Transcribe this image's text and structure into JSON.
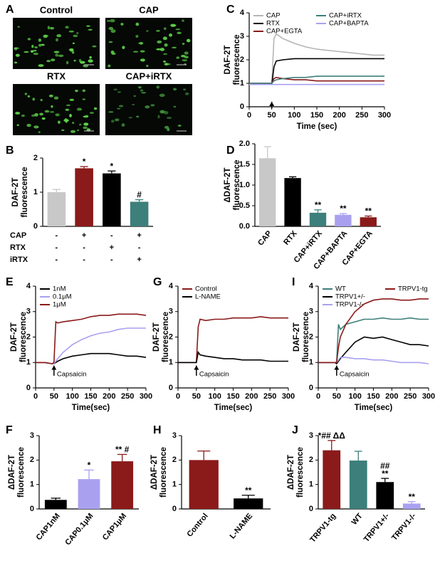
{
  "panel_a": {
    "panel": "A",
    "images": [
      {
        "title": "Control"
      },
      {
        "title": "CAP"
      },
      {
        "title": "RTX"
      },
      {
        "title": "CAP+iRTX"
      }
    ]
  },
  "chart_data": [
    {
      "type": "line",
      "panel": "C",
      "y_label": [
        "DAF-2T",
        "fluorescence"
      ],
      "x_label": "Time (sec)",
      "x": [
        0,
        25,
        45,
        50,
        55,
        60,
        75,
        100,
        125,
        150,
        175,
        200,
        225,
        250,
        275,
        300
      ],
      "series": [
        {
          "name": "CAP",
          "color": "#b5b5b5",
          "values": [
            1,
            1,
            1,
            1,
            2.9,
            3.1,
            2.9,
            2.7,
            2.55,
            2.45,
            2.4,
            2.35,
            2.3,
            2.25,
            2.2,
            2.2
          ]
        },
        {
          "name": "RTX",
          "color": "#000000",
          "values": [
            0.95,
            0.95,
            0.95,
            0.95,
            1.7,
            1.95,
            2.0,
            2.05,
            2.05,
            2.05,
            2.05,
            2.05,
            2.05,
            2.05,
            2.05,
            2.05
          ]
        },
        {
          "name": "CAP+EGTA",
          "color": "#8b1a1a",
          "values": [
            1,
            1,
            1,
            1,
            1.2,
            1.25,
            1.2,
            1.15,
            1.15,
            1.1,
            1.1,
            1.1,
            1.1,
            1.1,
            1.1,
            1.1
          ]
        },
        {
          "name": "CAP+iRTX",
          "color": "#3d7f7a",
          "values": [
            1,
            1,
            1,
            1,
            1.1,
            1.15,
            1.2,
            1.25,
            1.25,
            1.3,
            1.3,
            1.3,
            1.3,
            1.3,
            1.3,
            1.3
          ]
        },
        {
          "name": "CAP+BAPTA",
          "color": "#a9a1f0",
          "values": [
            0.95,
            0.95,
            0.95,
            0.95,
            0.95,
            0.95,
            0.95,
            0.95,
            0.95,
            0.95,
            0.95,
            0.95,
            0.95,
            0.95,
            0.95,
            0.95
          ]
        }
      ],
      "xlim": [
        0,
        300
      ],
      "xticks": [
        0,
        50,
        100,
        150,
        200,
        250,
        300
      ],
      "ylim": [
        0,
        4
      ],
      "yticks": [
        0,
        1,
        2,
        3,
        4
      ],
      "arrow_at": 50
    },
    {
      "type": "bar",
      "panel": "B",
      "y_label": [
        "DAF-2T",
        "fluorescence"
      ],
      "values": [
        1.0,
        1.7,
        1.55,
        0.72
      ],
      "errors": [
        0.08,
        0.05,
        0.07,
        0.06
      ],
      "colors": [
        "#c8c8c8",
        "#8b1a1a",
        "#000000",
        "#3d7f7a"
      ],
      "annotations": [
        null,
        "*",
        "*",
        "#"
      ],
      "ylim": [
        0,
        2
      ],
      "yticks": [
        0,
        1,
        2
      ],
      "table": {
        "rows": [
          {
            "label": "CAP",
            "cells": [
              "-",
              "+",
              "-",
              "+"
            ]
          },
          {
            "label": "RTX",
            "cells": [
              "-",
              "-",
              "+",
              "-"
            ]
          },
          {
            "label": "iRTX",
            "cells": [
              "-",
              "-",
              "-",
              "+"
            ]
          }
        ]
      }
    },
    {
      "type": "bar",
      "panel": "D",
      "y_label": [
        "ΔDAF-2T",
        "fluorescence"
      ],
      "categories": [
        "CAP",
        "RTX",
        "CAP+iRTX",
        "CAP+BAPTA",
        "CAP+EGTA"
      ],
      "values": [
        1.65,
        1.17,
        0.33,
        0.28,
        0.22
      ],
      "errors": [
        0.28,
        0.03,
        0.07,
        0.03,
        0.03
      ],
      "colors": [
        "#c8c8c8",
        "#000000",
        "#3d7f7a",
        "#a9a1f0",
        "#8b1a1a"
      ],
      "annotations": [
        null,
        null,
        "**",
        "**",
        "**"
      ],
      "ylim": [
        0,
        2
      ],
      "yticks": [
        {
          "value": 0,
          "label": "0.0"
        },
        {
          "value": 0.5,
          "label": "0.5"
        },
        {
          "value": 1,
          "label": "1.0"
        },
        {
          "value": 1.5,
          "label": "1.5"
        },
        {
          "value": 2,
          "label": "2.0"
        }
      ]
    },
    {
      "type": "line",
      "panel": "E",
      "y_label": [
        "DAF-2T",
        "fluorescence"
      ],
      "x_label": "Time(sec)",
      "x": [
        0,
        25,
        45,
        50,
        55,
        60,
        75,
        100,
        125,
        150,
        175,
        200,
        225,
        250,
        275,
        300
      ],
      "series": [
        {
          "name": "1nM",
          "color": "#000000",
          "values": [
            1,
            1,
            0.95,
            0.95,
            1.0,
            1.05,
            1.15,
            1.25,
            1.3,
            1.35,
            1.35,
            1.35,
            1.3,
            1.25,
            1.25,
            1.2
          ]
        },
        {
          "name": "0.1μM",
          "color": "#a9a1f0",
          "values": [
            1,
            1,
            0.95,
            0.95,
            1.05,
            1.15,
            1.4,
            1.7,
            1.9,
            2.05,
            2.15,
            2.2,
            2.3,
            2.35,
            2.35,
            2.35
          ]
        },
        {
          "name": "1μM",
          "color": "#8b1a1a",
          "values": [
            1,
            1,
            0.95,
            1.0,
            2.6,
            2.55,
            2.6,
            2.65,
            2.7,
            2.8,
            2.85,
            2.85,
            2.9,
            2.9,
            2.9,
            2.85
          ]
        }
      ],
      "xlim": [
        0,
        300
      ],
      "xticks": [
        0,
        50,
        100,
        150,
        200,
        250,
        300
      ],
      "ylim": [
        0,
        4
      ],
      "yticks": [
        0,
        1,
        2,
        3,
        4
      ],
      "arrow_at": 50,
      "annotation": "Capsaicin"
    },
    {
      "type": "line",
      "panel": "G",
      "y_label": [
        "DAF-2T",
        "fluorescence"
      ],
      "x_label": "Time(sec)",
      "x": [
        0,
        25,
        45,
        50,
        55,
        60,
        75,
        100,
        125,
        150,
        175,
        200,
        225,
        250,
        275,
        300
      ],
      "series": [
        {
          "name": "Control",
          "color": "#8b1a1a",
          "values": [
            1,
            1,
            1,
            1,
            2.4,
            2.7,
            2.65,
            2.7,
            2.7,
            2.75,
            2.75,
            2.75,
            2.8,
            2.75,
            2.75,
            2.75
          ]
        },
        {
          "name": "L-NAME",
          "color": "#000000",
          "values": [
            1,
            1,
            1,
            1,
            1.4,
            1.3,
            1.25,
            1.2,
            1.15,
            1.15,
            1.1,
            1.1,
            1.1,
            1.05,
            1.05,
            1.05
          ]
        }
      ],
      "xlim": [
        0,
        300
      ],
      "xticks": [
        0,
        50,
        100,
        150,
        200,
        250,
        300
      ],
      "ylim": [
        0,
        4
      ],
      "yticks": [
        0,
        1,
        2,
        3,
        4
      ],
      "arrow_at": 50,
      "annotation": "Capsaicin"
    },
    {
      "type": "line",
      "panel": "I",
      "y_label": [
        "DAF-2T",
        "fluorescence"
      ],
      "x_label": "Time(sec)",
      "x": [
        0,
        25,
        45,
        50,
        55,
        60,
        75,
        100,
        125,
        150,
        175,
        200,
        225,
        250,
        275,
        300
      ],
      "series": [
        {
          "name": "WT",
          "color": "#3d7f7a",
          "values": [
            1,
            1,
            1,
            1,
            2.5,
            2.3,
            2.5,
            2.6,
            2.7,
            2.7,
            2.75,
            2.7,
            2.7,
            2.75,
            2.7,
            2.7
          ]
        },
        {
          "name": "TRPV1+/-",
          "color": "#000000",
          "values": [
            1,
            1,
            1,
            0.95,
            1.05,
            1.15,
            1.4,
            1.8,
            2.0,
            1.95,
            2.0,
            1.9,
            1.8,
            1.7,
            1.7,
            1.65
          ]
        },
        {
          "name": "TRPV1-/-",
          "color": "#a9a1f0",
          "values": [
            1,
            1,
            1,
            1,
            1.1,
            1.2,
            1.2,
            1.15,
            1.15,
            1.1,
            1.1,
            1.05,
            1.0,
            1.0,
            1.0,
            0.95
          ]
        },
        {
          "name": "TRPV1-tg",
          "color": "#8b1a1a",
          "values": [
            1,
            1,
            1,
            1,
            1.6,
            2.0,
            2.5,
            3.0,
            3.3,
            3.45,
            3.5,
            3.5,
            3.45,
            3.45,
            3.5,
            3.5
          ]
        }
      ],
      "xlim": [
        0,
        300
      ],
      "xticks": [
        0,
        50,
        100,
        150,
        200,
        250,
        300
      ],
      "ylim": [
        0,
        4
      ],
      "yticks": [
        0,
        1,
        2,
        3,
        4
      ],
      "arrow_at": 50,
      "annotation": "Capsaicin"
    },
    {
      "type": "bar",
      "panel": "F",
      "y_label": [
        "ΔDAF-2T",
        "fluorescence"
      ],
      "categories": [
        "CAP1nM",
        "CAP0.1μM",
        "CAP1μM"
      ],
      "values": [
        0.37,
        1.22,
        1.95
      ],
      "errors": [
        0.07,
        0.37,
        0.28
      ],
      "colors": [
        "#000000",
        "#a9a1f0",
        "#8b1a1a"
      ],
      "annotations": [
        null,
        "*",
        "** #"
      ],
      "ylim": [
        0,
        3
      ],
      "yticks": [
        0,
        1,
        2,
        3
      ]
    },
    {
      "type": "bar",
      "panel": "H",
      "y_label": [
        "ΔDAF-2T",
        "fluorescence"
      ],
      "categories": [
        "Control",
        "L-NAME"
      ],
      "values": [
        2.0,
        0.43
      ],
      "errors": [
        0.37,
        0.13
      ],
      "colors": [
        "#8b1a1a",
        "#000000"
      ],
      "annotations": [
        null,
        "**"
      ],
      "ylim": [
        0,
        3
      ],
      "yticks": [
        0,
        1,
        2,
        3
      ]
    },
    {
      "type": "bar",
      "panel": "J",
      "y_label": [
        "ΔDAF-2T",
        "fluorescence"
      ],
      "categories": [
        "TRPV1-tg",
        "WT",
        "TRPV1+/-",
        "TRPV1-/-"
      ],
      "values": [
        2.4,
        1.98,
        1.1,
        0.22
      ],
      "errors": [
        0.4,
        0.38,
        0.15,
        0.08
      ],
      "colors": [
        "#8b1a1a",
        "#3d7f7a",
        "#000000",
        "#a9a1f0"
      ],
      "annotations": [
        "*## ΔΔ",
        null,
        [
          "##",
          "**"
        ],
        "**"
      ],
      "ylim": [
        0,
        3
      ],
      "yticks": [
        0,
        1,
        2,
        3
      ]
    }
  ]
}
